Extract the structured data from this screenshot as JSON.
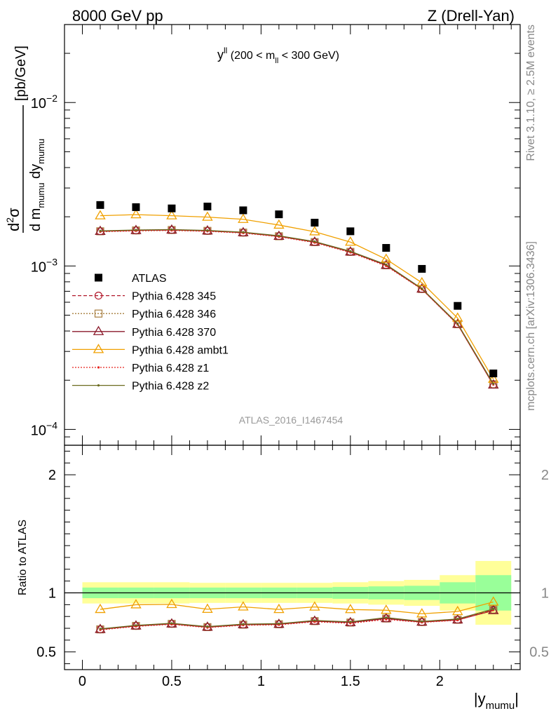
{
  "header": {
    "left": "8000 GeV pp",
    "right": "Z (Drell-Yan)"
  },
  "side": {
    "top": "Rivet 3.1.10, ≥ 2.5M events",
    "bottom": "mcplots.cern.ch [arXiv:1306.3436]"
  },
  "watermark": "ATLAS_2016_I1467454",
  "chart_data": {
    "type": "scatter",
    "panel_title": "y^ll (200 < m_ll < 300 GeV)",
    "xlabel": "|y_mumu|",
    "ylabel": "d²σ / d m_mumu dy_mumu [pb/GeV]",
    "ratio_ylabel": "Ratio to ATLAS",
    "xlim": [
      -0.1,
      2.45
    ],
    "ylim": [
      8e-05,
      0.03
    ],
    "yscale": "log",
    "ratio_ylim": [
      0.35,
      2.25
    ],
    "x_ticks": [
      "0",
      "0.5",
      "1",
      "1.5",
      "2"
    ],
    "y_ticks": [
      "10^-4",
      "10^-3",
      "10^-2"
    ],
    "ratio_ticks": [
      "0.5",
      "1",
      "2"
    ],
    "x": [
      0.1,
      0.3,
      0.5,
      0.7,
      0.9,
      1.1,
      1.3,
      1.5,
      1.7,
      1.9,
      2.1,
      2.3
    ],
    "bin_edges": [
      0,
      0.2,
      0.4,
      0.6,
      0.8,
      1.0,
      1.2,
      1.4,
      1.6,
      1.8,
      2.0,
      2.2,
      2.4
    ],
    "data": {
      "name": "ATLAS",
      "values": [
        0.00236,
        0.00229,
        0.00225,
        0.00231,
        0.00219,
        0.00207,
        0.00184,
        0.00163,
        0.00129,
        0.00096,
        0.00057,
        0.00022
      ],
      "band_inner": [
        0.045,
        0.045,
        0.045,
        0.045,
        0.045,
        0.045,
        0.045,
        0.05,
        0.055,
        0.06,
        0.09,
        0.15
      ],
      "band_outer": [
        0.09,
        0.09,
        0.09,
        0.085,
        0.085,
        0.085,
        0.085,
        0.09,
        0.1,
        0.11,
        0.15,
        0.27
      ]
    },
    "series": [
      {
        "name": "Pythia 6.428 345",
        "color": "#b2182b",
        "dash": "5,3",
        "marker": "circle",
        "values": [
          0.00163,
          0.00165,
          0.00166,
          0.00164,
          0.0016,
          0.00152,
          0.0014,
          0.00122,
          0.00101,
          0.000723,
          0.00044,
          0.000188
        ]
      },
      {
        "name": "Pythia 6.428 346",
        "color": "#a67c3d",
        "dash": "2,2",
        "marker": "square",
        "values": [
          0.00163,
          0.00165,
          0.00166,
          0.00164,
          0.0016,
          0.00152,
          0.0014,
          0.00122,
          0.00101,
          0.000723,
          0.00044,
          0.000189
        ]
      },
      {
        "name": "Pythia 6.428 370",
        "color": "#8b1a2b",
        "dash": "",
        "marker": "triangle",
        "values": [
          0.00163,
          0.00165,
          0.00166,
          0.00164,
          0.0016,
          0.00152,
          0.0014,
          0.00122,
          0.00101,
          0.000723,
          0.00044,
          0.000187
        ]
      },
      {
        "name": "Pythia 6.428 ambt1",
        "color": "#f0a000",
        "dash": "",
        "marker": "triangle",
        "values": [
          0.00203,
          0.00206,
          0.00203,
          0.00199,
          0.00193,
          0.00178,
          0.00162,
          0.0014,
          0.0011,
          0.00079,
          0.00048,
          0.000203
        ]
      },
      {
        "name": "Pythia 6.428 z1",
        "color": "#e8251e",
        "dash": "2,2",
        "marker": "dot",
        "values": [
          0.00162,
          0.00164,
          0.00165,
          0.00163,
          0.00159,
          0.00151,
          0.00139,
          0.00121,
          0.001,
          0.00072,
          0.000438,
          0.000188
        ]
      },
      {
        "name": "Pythia 6.428 z2",
        "color": "#6b6b1f",
        "dash": "",
        "marker": "dot",
        "values": [
          0.00164,
          0.00166,
          0.00167,
          0.00165,
          0.00161,
          0.00153,
          0.00141,
          0.00123,
          0.00102,
          0.000728,
          0.000444,
          0.00019
        ]
      }
    ],
    "colors": {
      "band_outer": "#ffff99",
      "band_inner": "#99ff99",
      "data_marker": "#000000"
    },
    "legend_placement": "left"
  }
}
